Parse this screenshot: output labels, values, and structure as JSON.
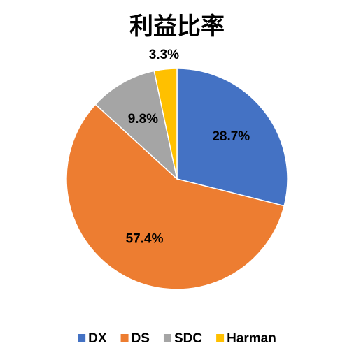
{
  "chart_data": {
    "type": "pie",
    "title": "利益比率",
    "categories": [
      "DX",
      "DS",
      "SDC",
      "Harman"
    ],
    "values": [
      28.7,
      57.4,
      9.8,
      3.3
    ],
    "value_labels": [
      "28.7%",
      "57.4%",
      "9.8%",
      "3.3%"
    ],
    "colors": [
      "#4472c4",
      "#ed7d31",
      "#a5a5a5",
      "#ffc000"
    ],
    "legend": "bottom"
  }
}
